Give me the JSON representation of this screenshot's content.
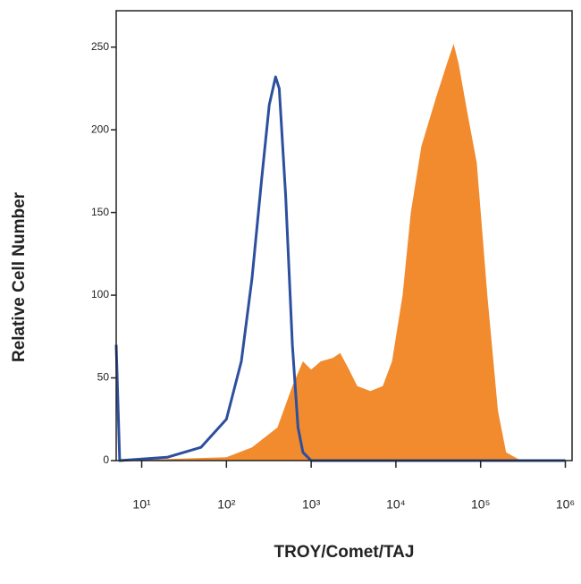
{
  "chart_data": {
    "type": "histogram-overlay",
    "xlabel": "TROY/Comet/TAJ",
    "ylabel": "Relative Cell Number",
    "xscale": "log",
    "xlim": [
      5,
      1200000
    ],
    "ylim": [
      0,
      272
    ],
    "xticks": [
      {
        "value": 10,
        "label": "10¹"
      },
      {
        "value": 100,
        "label": "10²"
      },
      {
        "value": 1000,
        "label": "10³"
      },
      {
        "value": 10000,
        "label": "10⁴"
      },
      {
        "value": 100000,
        "label": "10⁵"
      },
      {
        "value": 1000000,
        "label": "10⁶"
      }
    ],
    "yticks": [
      0,
      50,
      100,
      150,
      200,
      250
    ],
    "series": [
      {
        "style": "area",
        "color": "#f28a2e",
        "x": [
          5,
          100,
          200,
          400,
          600,
          800,
          1000,
          1300,
          1800,
          2200,
          2800,
          3500,
          5000,
          7000,
          9000,
          12000,
          15000,
          20000,
          30000,
          40000,
          48000,
          55000,
          70000,
          90000,
          120000,
          160000,
          200000,
          300000,
          1000000
        ],
        "values": [
          0,
          2,
          8,
          20,
          45,
          60,
          55,
          60,
          62,
          65,
          55,
          45,
          42,
          45,
          60,
          100,
          150,
          190,
          220,
          240,
          252,
          240,
          210,
          180,
          100,
          30,
          5,
          0,
          0
        ]
      },
      {
        "style": "line",
        "color": "#2c4f9e",
        "x": [
          5,
          5.5,
          20,
          50,
          100,
          150,
          200,
          260,
          320,
          380,
          420,
          500,
          600,
          700,
          800,
          1000,
          1000000
        ],
        "values": [
          70,
          0,
          2,
          8,
          25,
          60,
          110,
          170,
          215,
          232,
          225,
          160,
          70,
          20,
          5,
          0,
          0
        ]
      }
    ]
  }
}
